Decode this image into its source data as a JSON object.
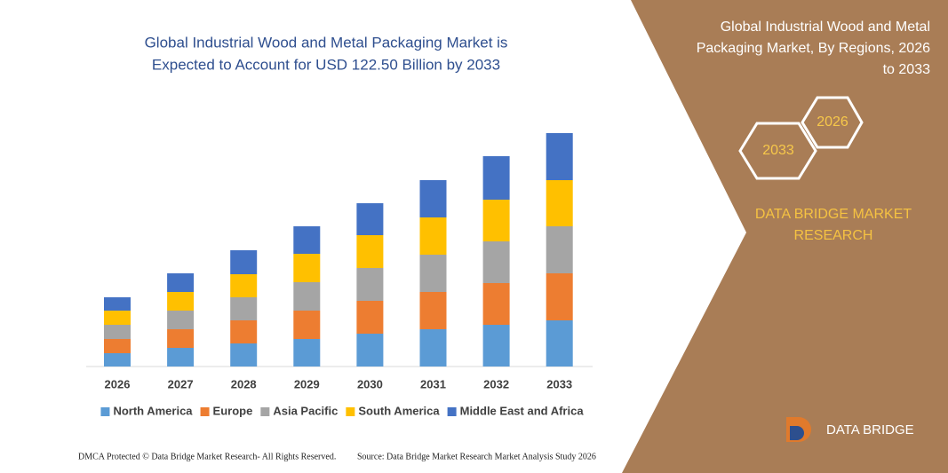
{
  "chart_data": {
    "type": "bar",
    "stacked": true,
    "title": [
      "Global Industrial Wood and Metal Packaging Market is",
      "Expected to Account for USD 122.50 Billion by 2033"
    ],
    "categories": [
      "2026",
      "2027",
      "2028",
      "2029",
      "2030",
      "2031",
      "2032",
      "2033"
    ],
    "series": [
      {
        "name": "North America",
        "color": "#5b9bd5",
        "values": [
          15,
          21,
          26,
          31,
          37,
          42,
          47,
          52
        ]
      },
      {
        "name": "Europe",
        "color": "#ed7d31",
        "values": [
          16,
          21,
          26,
          32,
          37,
          42,
          47,
          53
        ]
      },
      {
        "name": "Asia Pacific",
        "color": "#a5a5a5",
        "values": [
          16,
          21,
          26,
          32,
          37,
          42,
          47,
          53
        ]
      },
      {
        "name": "South America",
        "color": "#ffc000",
        "values": [
          16,
          21,
          26,
          32,
          37,
          42,
          47,
          52
        ]
      },
      {
        "name": "Middle East and Africa",
        "color": "#4472c4",
        "values": [
          15,
          21,
          27,
          31,
          36,
          42,
          49,
          53
        ]
      }
    ],
    "legend": "bottom"
  },
  "side_panel": {
    "title": [
      "Global Industrial Wood and Metal",
      "Packaging Market, By Regions, 2026",
      "to 2033"
    ],
    "hex_end": "2033",
    "hex_start": "2026",
    "brand": [
      "DATA BRIDGE MARKET",
      "RESEARCH"
    ],
    "logo": "DATA BRIDGE"
  },
  "footer": {
    "left": "DMCA Protected © Data Bridge Market Research- All Rights Reserved.",
    "right": "Source: Data Bridge Market Research  Market Analysis Study 2026"
  }
}
